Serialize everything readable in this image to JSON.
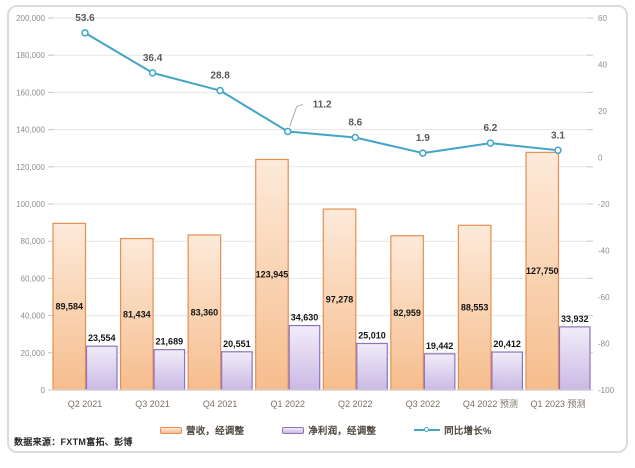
{
  "chart_data": {
    "type": "combo_bar_line",
    "title": "",
    "categories": [
      "Q2 2021",
      "Q3 2021",
      "Q4 2021",
      "Q1 2022",
      "Q2 2022",
      "Q3 2022",
      "Q4 2022 预测",
      "Q1 2023 预测"
    ],
    "series": [
      {
        "name": "营收，经调整",
        "type": "bar",
        "axis": "left",
        "values": [
          89584,
          81434,
          83360,
          123945,
          97278,
          82959,
          88553,
          127750
        ],
        "border_color": "#e78f52",
        "fill_top": "#fdeada",
        "fill_bottom": "#f6bd8d",
        "label_position": "inside-center"
      },
      {
        "name": "净利润，经调整",
        "type": "bar",
        "axis": "left",
        "values": [
          23554,
          21689,
          20551,
          34630,
          25010,
          19442,
          20412,
          33932
        ],
        "border_color": "#8c74bc",
        "fill_top": "#f1edf9",
        "fill_bottom": "#cbb9e5",
        "label_position": "outside-top"
      },
      {
        "name": "同比增长%",
        "type": "line",
        "axis": "right",
        "values": [
          53.6,
          36.4,
          28.8,
          11.2,
          8.6,
          1.9,
          6.2,
          3.1
        ],
        "color": "#43a5c5"
      }
    ],
    "left_axis": {
      "min": 0,
      "max": 200000,
      "step": 20000,
      "tick_labels": [
        "0",
        "20,000",
        "40,000",
        "60,000",
        "80,000",
        "100,000",
        "120,000",
        "140,000",
        "160,000",
        "180,000",
        "200,000"
      ]
    },
    "right_axis": {
      "min": -100,
      "max": 60,
      "step": 20,
      "tick_labels": [
        "-100",
        "-80",
        "-60",
        "-40",
        "-20",
        "0",
        "20",
        "40",
        "60"
      ]
    },
    "grid": true,
    "legend_position": "bottom",
    "source": "数据来源：FXTM富拓、彭博"
  }
}
